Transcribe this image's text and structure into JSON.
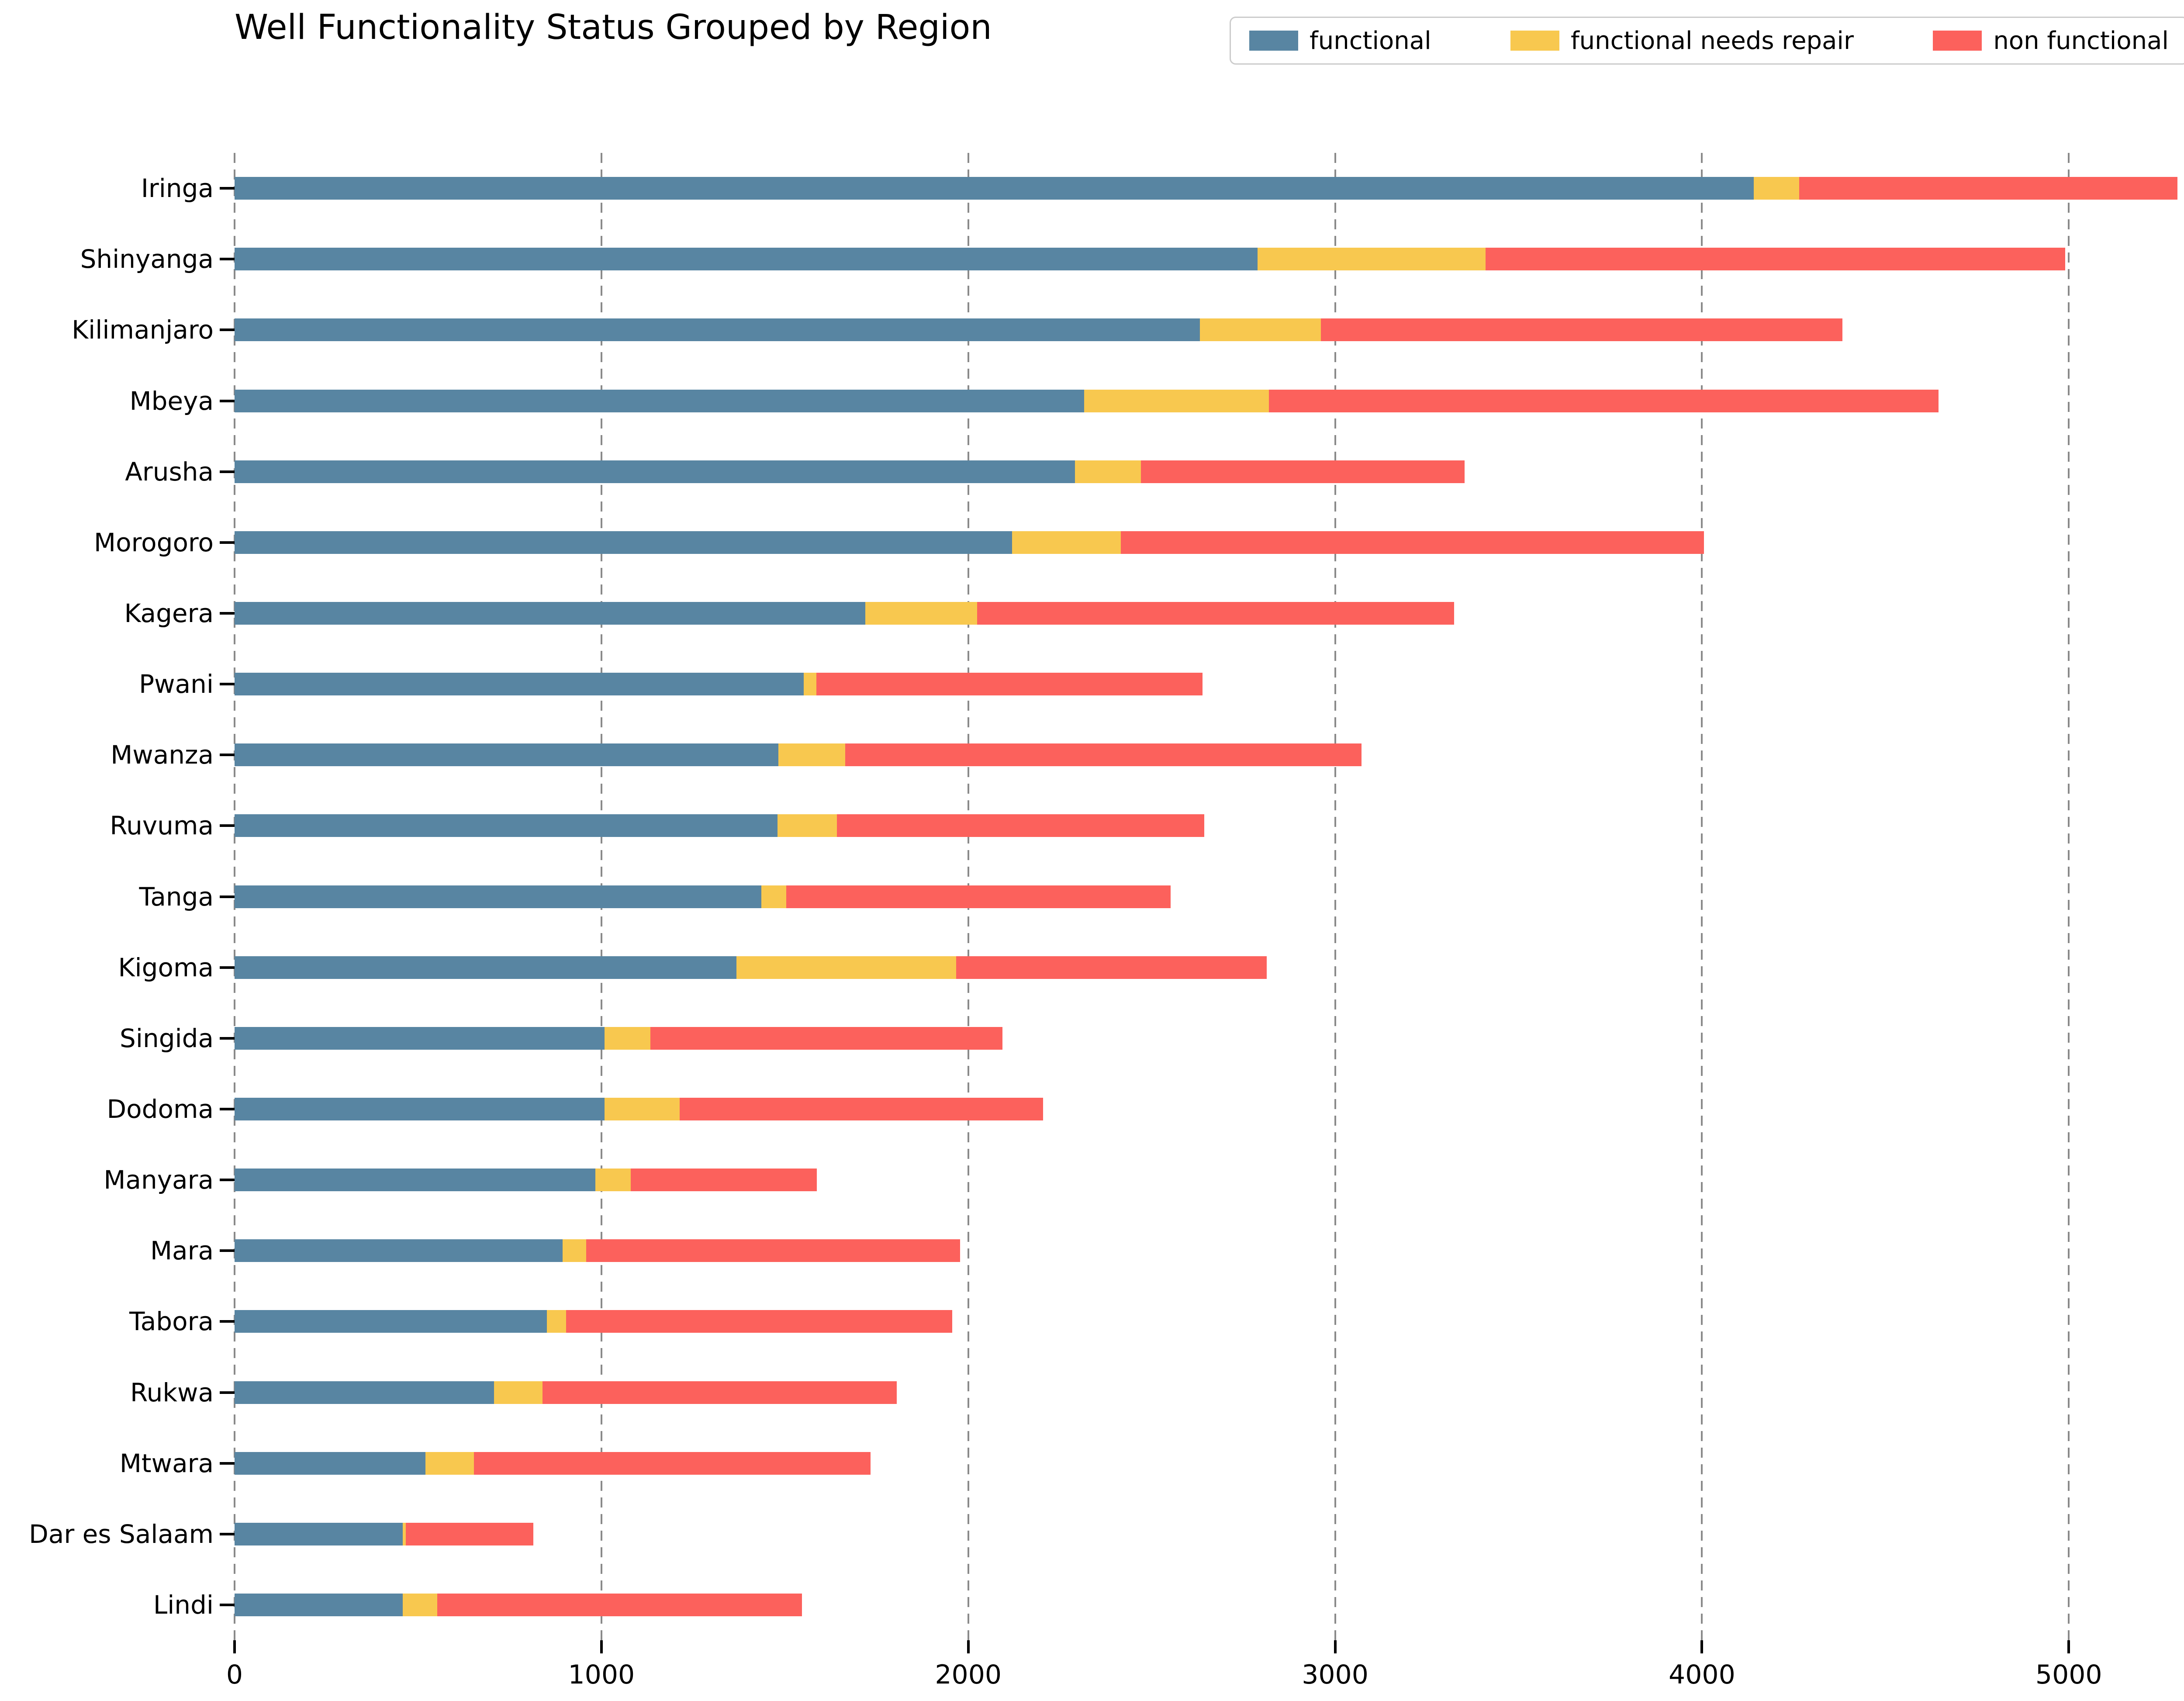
{
  "title": "Well Functionality Status Grouped by Region",
  "colors": {
    "functional": "#5885A2",
    "functional_needs_repair": "#F8C84F",
    "non_functional": "#FC615C",
    "gridline": "#8a8a8a",
    "legend_border": "#cccccc"
  },
  "chart_data": {
    "type": "bar",
    "orientation": "horizontal",
    "stacked": true,
    "title": "Well Functionality Status Grouped by Region",
    "xlabel": "",
    "ylabel": "",
    "xlim": [
      0,
      5445
    ],
    "xticks": [
      0,
      1000,
      2000,
      3000,
      4000,
      5000
    ],
    "grid": "vertical-dashed",
    "legend_position": "upper-right",
    "categories": [
      "Iringa",
      "Shinyanga",
      "Kilimanjaro",
      "Mbeya",
      "Arusha",
      "Morogoro",
      "Kagera",
      "Pwani",
      "Mwanza",
      "Ruvuma",
      "Tanga",
      "Kigoma",
      "Singida",
      "Dodoma",
      "Manyara",
      "Mara",
      "Tabora",
      "Rukwa",
      "Mtwara",
      "Dar es Salaam",
      "Lindi"
    ],
    "series": [
      {
        "name": "functional",
        "color": "#5885A2",
        "values": [
          4141,
          2789,
          2631,
          2316,
          2291,
          2119,
          1719,
          1551,
          1482,
          1480,
          1436,
          1368,
          1009,
          1009,
          983,
          894,
          851,
          707,
          520,
          459,
          459
        ]
      },
      {
        "name": "functional needs repair",
        "color": "#F8C84F",
        "values": [
          124,
          621,
          330,
          504,
          180,
          297,
          305,
          35,
          183,
          162,
          68,
          599,
          125,
          204,
          97,
          64,
          53,
          133,
          133,
          8,
          94
        ]
      },
      {
        "name": "non functional",
        "color": "#FC615C",
        "values": [
          1031,
          1580,
          1422,
          1825,
          882,
          1590,
          1300,
          1052,
          1407,
          1001,
          1048,
          847,
          959,
          991,
          507,
          1020,
          1052,
          965,
          1081,
          348,
          994
        ]
      }
    ]
  }
}
